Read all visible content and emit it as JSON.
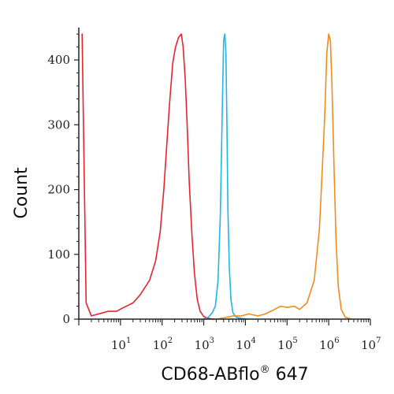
{
  "chart_data": {
    "type": "line",
    "title": "",
    "xlabel": "CD68-ABflo",
    "xlabel_sup": "®",
    "xlabel_suffix": " 647",
    "ylabel": "Count",
    "x_scale": "log",
    "xlim": [
      1,
      10000000
    ],
    "ylim": [
      0,
      450
    ],
    "x_tick_bases": [
      "10",
      "10",
      "10",
      "10",
      "10",
      "10",
      "10"
    ],
    "x_tick_exponents": [
      "1",
      "2",
      "3",
      "4",
      "5",
      "6",
      "7"
    ],
    "y_ticks": [
      0,
      100,
      200,
      300,
      400
    ],
    "y_tick_labels": [
      "0",
      "100",
      "200",
      "300",
      "400"
    ],
    "grid": false,
    "legend": "none",
    "series": [
      {
        "color": "#e8242b",
        "x": [
          1.2,
          1.5,
          2,
          3,
          5,
          8,
          12,
          20,
          30,
          50,
          70,
          90,
          110,
          130,
          150,
          180,
          210,
          250,
          290,
          320,
          360,
          400,
          450,
          520,
          600,
          700,
          820,
          1000,
          1300,
          1800
        ],
        "y": [
          440,
          25,
          5,
          8,
          12,
          12,
          18,
          25,
          38,
          60,
          90,
          135,
          200,
          270,
          330,
          395,
          420,
          435,
          440,
          420,
          370,
          300,
          210,
          130,
          70,
          30,
          12,
          4,
          1,
          0
        ]
      },
      {
        "color": "#1fb6e8",
        "x": [
          1000,
          1300,
          1600,
          1900,
          2200,
          2500,
          2800,
          3000,
          3200,
          3400,
          3600,
          3800,
          4100,
          4500,
          5000,
          6000,
          8000,
          12000
        ],
        "y": [
          0,
          3,
          10,
          20,
          60,
          160,
          330,
          430,
          440,
          410,
          300,
          170,
          80,
          30,
          10,
          3,
          1,
          0
        ]
      },
      {
        "color": "#f28c1e",
        "x": [
          2000,
          3000,
          5000,
          8000,
          12000,
          20000,
          30000,
          50000,
          70000,
          100000,
          150000,
          200000,
          300000,
          450000,
          600000,
          800000,
          900000,
          1000000,
          1100000,
          1200000,
          1350000,
          1500000,
          1700000,
          2000000,
          2500000,
          3500000
        ],
        "y": [
          0,
          2,
          5,
          5,
          8,
          5,
          8,
          15,
          20,
          18,
          20,
          15,
          25,
          60,
          140,
          310,
          410,
          440,
          430,
          360,
          230,
          120,
          50,
          15,
          3,
          0
        ]
      }
    ]
  }
}
